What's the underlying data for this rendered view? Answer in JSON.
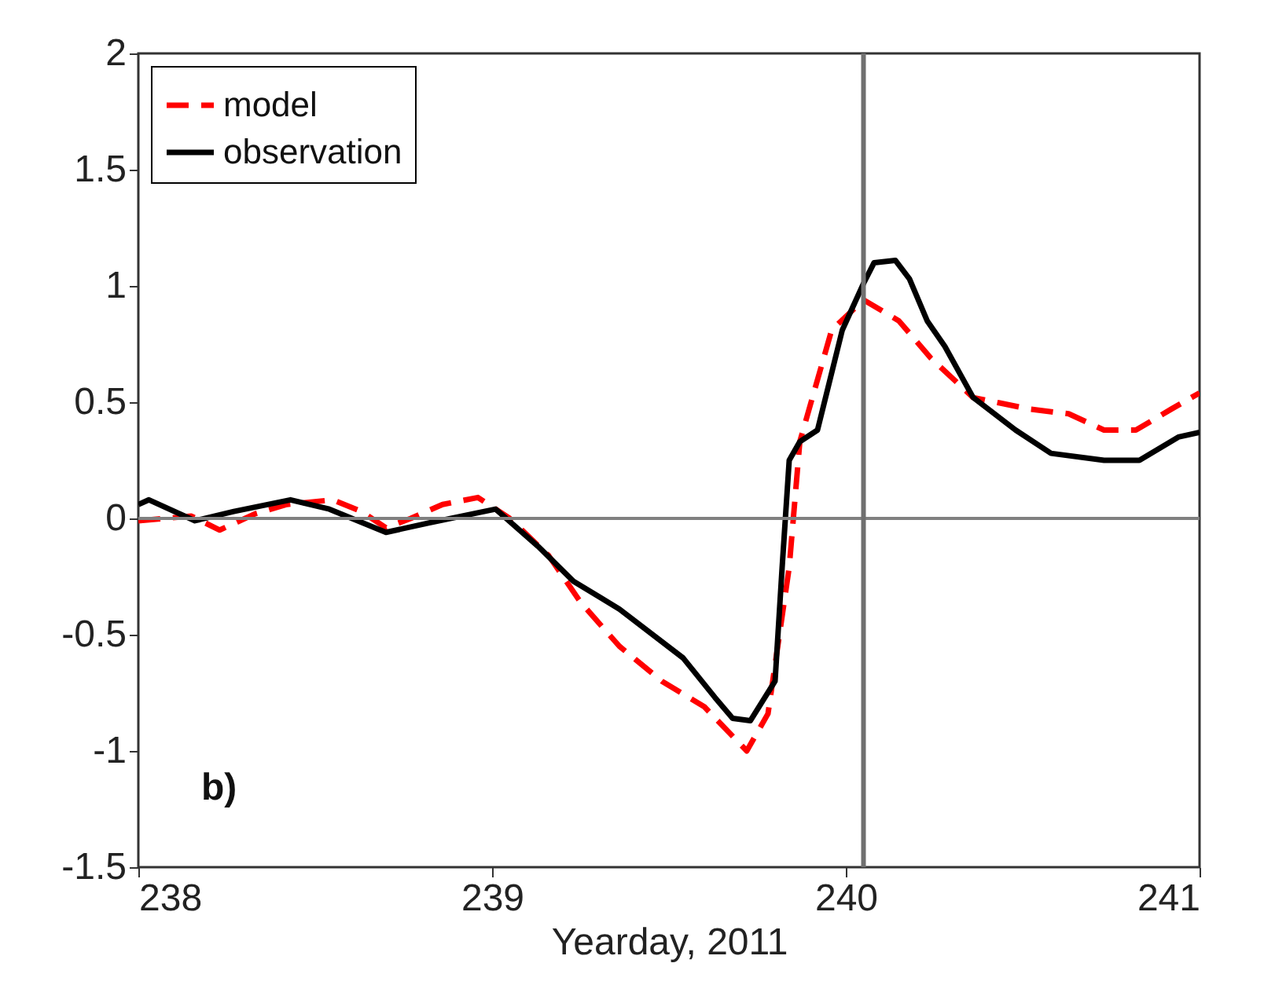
{
  "chart_data": {
    "type": "line",
    "xlabel": "Yearday, 2011",
    "xlim": [
      238,
      241
    ],
    "xticks": [
      238,
      239,
      240,
      241
    ],
    "ylim": [
      -1.5,
      2
    ],
    "yticks": [
      -1.5,
      -1,
      -0.5,
      0,
      0.5,
      1,
      1.5,
      2
    ],
    "grid": false,
    "legend": "top left",
    "annotations": [
      "b)"
    ],
    "ref_lines": [
      {
        "axis": "y",
        "value": 0,
        "color": "#808080"
      },
      {
        "axis": "x",
        "value": 240.05,
        "color": "#707070"
      }
    ],
    "series": [
      {
        "name": "model",
        "color": "#ff0000",
        "line_style": "dashed",
        "x": [
          238.0,
          238.15,
          238.23,
          238.33,
          238.42,
          238.55,
          238.63,
          238.7,
          238.77,
          238.86,
          238.96,
          239.05,
          239.16,
          239.25,
          239.36,
          239.48,
          239.6,
          239.72,
          239.78,
          239.84,
          239.87,
          239.96,
          240.05,
          240.15,
          240.24,
          240.36,
          240.52,
          240.63,
          240.73,
          240.82,
          240.92,
          241.0
        ],
        "values": [
          -0.01,
          0.01,
          -0.05,
          0.02,
          0.06,
          0.08,
          0.03,
          -0.04,
          0.0,
          0.06,
          0.09,
          0.0,
          -0.16,
          -0.36,
          -0.55,
          -0.7,
          -0.81,
          -1.0,
          -0.84,
          -0.21,
          0.33,
          0.81,
          0.94,
          0.85,
          0.69,
          0.52,
          0.47,
          0.45,
          0.38,
          0.38,
          0.47,
          0.54
        ]
      },
      {
        "name": "observation",
        "color": "#000000",
        "line_style": "solid",
        "x": [
          238.0,
          238.03,
          238.16,
          238.27,
          238.43,
          238.54,
          238.7,
          238.82,
          239.01,
          239.13,
          239.23,
          239.36,
          239.54,
          239.63,
          239.68,
          239.73,
          239.8,
          239.82,
          239.84,
          239.87,
          239.92,
          239.99,
          240.05,
          240.08,
          240.14,
          240.18,
          240.23,
          240.28,
          240.36,
          240.48,
          240.58,
          240.73,
          240.83,
          240.94,
          241.0
        ],
        "values": [
          0.06,
          0.08,
          -0.01,
          0.03,
          0.08,
          0.04,
          -0.06,
          -0.02,
          0.04,
          -0.12,
          -0.27,
          -0.39,
          -0.6,
          -0.77,
          -0.86,
          -0.87,
          -0.7,
          -0.21,
          0.25,
          0.33,
          0.38,
          0.81,
          1.01,
          1.1,
          1.11,
          1.03,
          0.85,
          0.74,
          0.52,
          0.38,
          0.28,
          0.25,
          0.25,
          0.35,
          0.37
        ]
      }
    ]
  }
}
